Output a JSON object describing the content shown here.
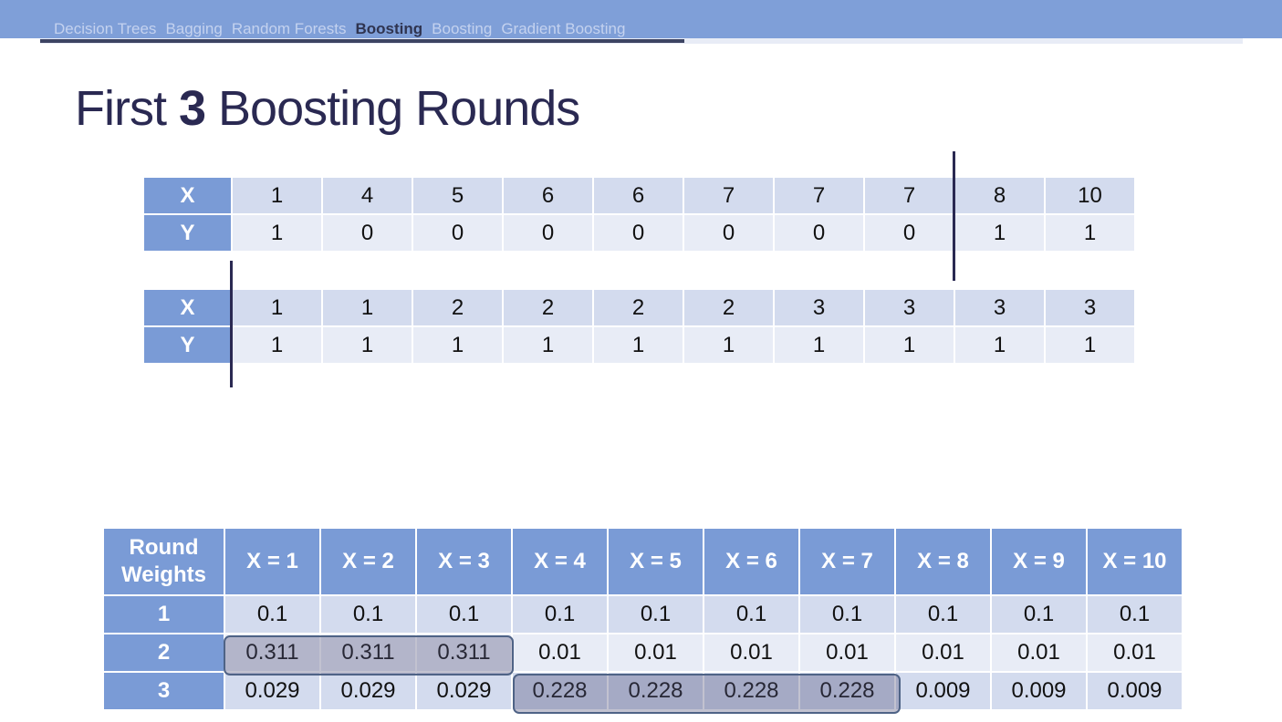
{
  "nav": {
    "items": [
      "Decision Trees",
      "Bagging",
      "Random Forests",
      "Boosting",
      "Boosting",
      "Gradient Boosting"
    ],
    "active_index": 3
  },
  "title": {
    "prefix": "First ",
    "number": "3",
    "suffix": " Boosting Rounds"
  },
  "table1": {
    "row_labels": [
      "X",
      "Y"
    ],
    "x": [
      "1",
      "4",
      "5",
      "6",
      "6",
      "7",
      "7",
      "7",
      "8",
      "10"
    ],
    "y": [
      "1",
      "0",
      "0",
      "0",
      "0",
      "0",
      "0",
      "0",
      "1",
      "1"
    ]
  },
  "table2": {
    "row_labels": [
      "X",
      "Y"
    ],
    "x": [
      "1",
      "1",
      "2",
      "2",
      "2",
      "2",
      "3",
      "3",
      "3",
      "3"
    ],
    "y": [
      "1",
      "1",
      "1",
      "1",
      "1",
      "1",
      "1",
      "1",
      "1",
      "1"
    ]
  },
  "weights": {
    "corner_line1": "Round",
    "corner_line2": "Weights",
    "columns": [
      "X = 1",
      "X = 2",
      "X = 3",
      "X = 4",
      "X = 5",
      "X = 6",
      "X = 7",
      "X = 8",
      "X = 9",
      "X = 10"
    ],
    "rows": [
      {
        "label": "1",
        "values": [
          "0.1",
          "0.1",
          "0.1",
          "0.1",
          "0.1",
          "0.1",
          "0.1",
          "0.1",
          "0.1",
          "0.1"
        ]
      },
      {
        "label": "2",
        "values": [
          "0.311",
          "0.311",
          "0.311",
          "0.01",
          "0.01",
          "0.01",
          "0.01",
          "0.01",
          "0.01",
          "0.01"
        ]
      },
      {
        "label": "3",
        "values": [
          "0.029",
          "0.029",
          "0.029",
          "0.228",
          "0.228",
          "0.228",
          "0.228",
          "0.009",
          "0.009",
          "0.009"
        ]
      }
    ]
  }
}
